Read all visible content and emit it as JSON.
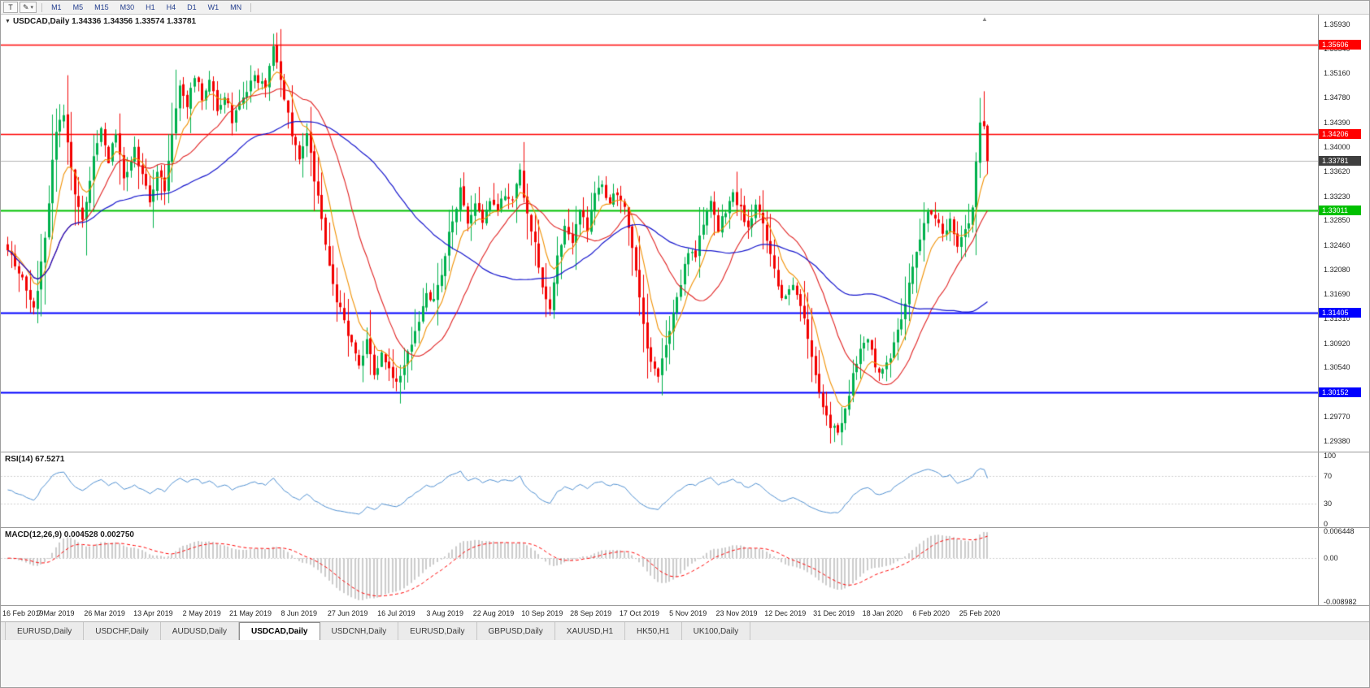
{
  "icons": {
    "dropdown": "▼",
    "pencil": "✎",
    "chevron_down": "▾",
    "shift_marker": "▲"
  },
  "toolbar": {
    "tool_button_label": "T",
    "timeframes": [
      "M1",
      "M5",
      "M15",
      "M30",
      "H1",
      "H4",
      "D1",
      "W1",
      "MN"
    ]
  },
  "chart_header": {
    "symbol": "USDCAD",
    "period": "Daily",
    "title": "USDCAD,Daily 1.34336 1.34356 1.33574 1.33781",
    "open": "1.34336",
    "high": "1.34356",
    "low": "1.33574",
    "close": "1.33781"
  },
  "price_scale": {
    "labels": [
      "1.35930",
      "1.35540",
      "1.35160",
      "1.34780",
      "1.34390",
      "1.34000",
      "1.33620",
      "1.33230",
      "1.32850",
      "1.32460",
      "1.32080",
      "1.31690",
      "1.31310",
      "1.30920",
      "1.30540",
      "1.30150",
      "1.29770",
      "1.29380"
    ]
  },
  "current_price": {
    "value": 1.33781,
    "label": "1.33781",
    "box_color": "#3f3f3f"
  },
  "rsi_panel": {
    "title": "RSI(14) 67.5271",
    "scale": [
      "100",
      "70",
      "30",
      "0"
    ]
  },
  "macd_panel": {
    "title": "MACD(12,26,9) 0.004528 0.002750",
    "scale_top": "0.006448",
    "scale_zero": "0.00",
    "scale_bottom": "-0.008982"
  },
  "date_axis": {
    "labels": [
      "16 Feb 2019",
      "7 Mar 2019",
      "26 Mar 2019",
      "13 Apr 2019",
      "2 May 2019",
      "21 May 2019",
      "8 Jun 2019",
      "27 Jun 2019",
      "16 Jul 2019",
      "3 Aug 2019",
      "22 Aug 2019",
      "10 Sep 2019",
      "28 Sep 2019",
      "17 Oct 2019",
      "5 Nov 2019",
      "23 Nov 2019",
      "12 Dec 2019",
      "31 Dec 2019",
      "18 Jan 2020",
      "6 Feb 2020",
      "25 Feb 2020"
    ]
  },
  "tabs": [
    {
      "label": "EURUSD,Daily",
      "active": false
    },
    {
      "label": "USDCHF,Daily",
      "active": false
    },
    {
      "label": "AUDUSD,Daily",
      "active": false
    },
    {
      "label": "USDCAD,Daily",
      "active": true
    },
    {
      "label": "USDCNH,Daily",
      "active": false
    },
    {
      "label": "EURUSD,Daily",
      "active": false
    },
    {
      "label": "GBPUSD,Daily",
      "active": false
    },
    {
      "label": "XAUUSD,H1",
      "active": false
    },
    {
      "label": "HK50,H1",
      "active": false
    },
    {
      "label": "UK100,Daily",
      "active": false
    }
  ],
  "colors": {
    "up": "#00b14d",
    "down": "#f20000",
    "ma_fast": "#f09000",
    "ma_mid": "#e02020",
    "ma_slow": "#1414cc",
    "rsi_line": "#4f8fd0",
    "macd_hist": "#b6b6b6",
    "macd_signal": "#ff0000",
    "grid": "#cfcfcf",
    "price_line": "#b4b4b4"
  },
  "chart_data": {
    "type": "candlestick",
    "symbol": "USDCAD",
    "timeframe": "Daily",
    "bars": 263,
    "y_range": [
      1.2922,
      1.3608
    ],
    "bars_per_date_label": 13,
    "last_bar_ohlc": {
      "open": 1.34336,
      "high": 1.34356,
      "low": 1.33574,
      "close": 1.33781
    },
    "horizontal_levels": [
      {
        "price": 1.35606,
        "label": "1.35606",
        "color": "#ff0000"
      },
      {
        "price": 1.34206,
        "label": "1.34206",
        "color": "#ff0000"
      },
      {
        "price": 1.33011,
        "label": "1.33011",
        "color": "#00c000"
      },
      {
        "price": 1.31405,
        "label": "1.31405",
        "color": "#0000ff"
      },
      {
        "price": 1.30152,
        "label": "1.30152",
        "color": "#0000ff"
      }
    ],
    "moving_averages": [
      {
        "period": 8,
        "type": "ema",
        "color": "#f09000"
      },
      {
        "period": 20,
        "type": "sma",
        "color": "#e02020"
      },
      {
        "period": 55,
        "type": "sma",
        "color": "#1414cc"
      }
    ],
    "extremes": {
      "may_peak_high": 1.3578,
      "dec_low": 1.2952,
      "feb_spike_high": 1.3472
    },
    "rsi": {
      "period": 14,
      "current": 67.5271,
      "levels": [
        70,
        30
      ],
      "scale": [
        0,
        100
      ]
    },
    "macd": {
      "fast": 12,
      "slow": 26,
      "signal": 9,
      "current_main": 0.004528,
      "current_signal": 0.00275,
      "scale_max": 0.006448,
      "scale_min": -0.008982
    },
    "price_path_anchors": [
      [
        0,
        1.3245
      ],
      [
        3,
        1.3205
      ],
      [
        7,
        1.3143
      ],
      [
        10,
        1.326
      ],
      [
        13,
        1.343
      ],
      [
        15,
        1.3445
      ],
      [
        18,
        1.333
      ],
      [
        20,
        1.3278
      ],
      [
        23,
        1.338
      ],
      [
        25,
        1.3425
      ],
      [
        27,
        1.338
      ],
      [
        29,
        1.342
      ],
      [
        31,
        1.335
      ],
      [
        34,
        1.3395
      ],
      [
        36,
        1.335
      ],
      [
        38,
        1.3315
      ],
      [
        40,
        1.3365
      ],
      [
        42,
        1.333
      ],
      [
        44,
        1.342
      ],
      [
        46,
        1.35
      ],
      [
        48,
        1.346
      ],
      [
        50,
        1.3515
      ],
      [
        52,
        1.348
      ],
      [
        54,
        1.3505
      ],
      [
        56,
        1.346
      ],
      [
        58,
        1.3485
      ],
      [
        60,
        1.3445
      ],
      [
        63,
        1.348
      ],
      [
        66,
        1.351
      ],
      [
        69,
        1.3495
      ],
      [
        71,
        1.3555
      ],
      [
        72,
        1.354
      ],
      [
        74,
        1.348
      ],
      [
        76,
        1.342
      ],
      [
        78,
        1.338
      ],
      [
        80,
        1.342
      ],
      [
        82,
        1.335
      ],
      [
        84,
        1.329
      ],
      [
        86,
        1.321
      ],
      [
        88,
        1.316
      ],
      [
        90,
        1.313
      ],
      [
        92,
        1.309
      ],
      [
        94,
        1.3065
      ],
      [
        96,
        1.3095
      ],
      [
        98,
        1.3045
      ],
      [
        100,
        1.3075
      ],
      [
        102,
        1.305
      ],
      [
        104,
        1.3025
      ],
      [
        106,
        1.306
      ],
      [
        108,
        1.3095
      ],
      [
        110,
        1.313
      ],
      [
        112,
        1.3165
      ],
      [
        114,
        1.316
      ],
      [
        117,
        1.323
      ],
      [
        119,
        1.329
      ],
      [
        121,
        1.333
      ],
      [
        123,
        1.3275
      ],
      [
        125,
        1.3315
      ],
      [
        127,
        1.3285
      ],
      [
        129,
        1.332
      ],
      [
        131,
        1.3295
      ],
      [
        133,
        1.333
      ],
      [
        135,
        1.331
      ],
      [
        137,
        1.336
      ],
      [
        139,
        1.3295
      ],
      [
        141,
        1.3245
      ],
      [
        143,
        1.318
      ],
      [
        145,
        1.314
      ],
      [
        147,
        1.3225
      ],
      [
        149,
        1.328
      ],
      [
        151,
        1.325
      ],
      [
        153,
        1.33
      ],
      [
        155,
        1.327
      ],
      [
        157,
        1.3325
      ],
      [
        159,
        1.334
      ],
      [
        161,
        1.331
      ],
      [
        163,
        1.333
      ],
      [
        165,
        1.33
      ],
      [
        166,
        1.328
      ],
      [
        168,
        1.32
      ],
      [
        170,
        1.312
      ],
      [
        172,
        1.306
      ],
      [
        174,
        1.3045
      ],
      [
        176,
        1.309
      ],
      [
        178,
        1.314
      ],
      [
        180,
        1.319
      ],
      [
        182,
        1.324
      ],
      [
        184,
        1.323
      ],
      [
        186,
        1.328
      ],
      [
        188,
        1.331
      ],
      [
        190,
        1.327
      ],
      [
        192,
        1.33
      ],
      [
        194,
        1.333
      ],
      [
        196,
        1.33
      ],
      [
        198,
        1.328
      ],
      [
        200,
        1.331
      ],
      [
        202,
        1.328
      ],
      [
        204,
        1.323
      ],
      [
        206,
        1.3175
      ],
      [
        208,
        1.3165
      ],
      [
        210,
        1.318
      ],
      [
        212,
        1.3155
      ],
      [
        214,
        1.31
      ],
      [
        216,
        1.304
      ],
      [
        218,
        1.299
      ],
      [
        220,
        1.2965
      ],
      [
        222,
        1.2952
      ],
      [
        224,
        1.299
      ],
      [
        226,
        1.3045
      ],
      [
        228,
        1.3085
      ],
      [
        230,
        1.31
      ],
      [
        232,
        1.306
      ],
      [
        234,
        1.3045
      ],
      [
        236,
        1.307
      ],
      [
        238,
        1.311
      ],
      [
        240,
        1.316
      ],
      [
        242,
        1.321
      ],
      [
        244,
        1.326
      ],
      [
        246,
        1.33
      ],
      [
        248,
        1.329
      ],
      [
        250,
        1.326
      ],
      [
        252,
        1.328
      ],
      [
        254,
        1.3245
      ],
      [
        256,
        1.3265
      ],
      [
        258,
        1.331
      ],
      [
        259,
        1.338
      ],
      [
        260,
        1.3445
      ],
      [
        261,
        1.3438
      ],
      [
        262,
        1.33781
      ]
    ]
  }
}
